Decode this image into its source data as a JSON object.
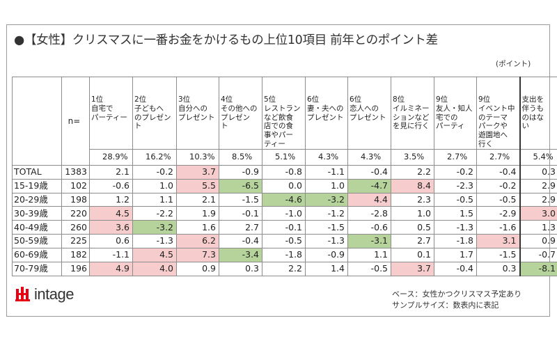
{
  "title": "●【女性】クリスマスに一番お金をかけるもの上位10項目 前年とのポイント差",
  "unit": "(ポイント)",
  "n_label": "n=",
  "notes": [
    "ベース：女性かつクリスマス予定あり",
    "サンプルサイズ：数表内に表記"
  ],
  "logo_text": "intage",
  "colors": {
    "positive": "#f6cccc",
    "negative": "#b5d39a",
    "border": "#8c8c8c"
  },
  "chart_data": {
    "type": "table",
    "title": "●【女性】クリスマスに一番お金をかけるもの上位10項目 前年とのポイント差",
    "columns": [
      {
        "header": [
          "1位",
          "自宅で",
          "パーティー"
        ],
        "share": "28.9%"
      },
      {
        "header": [
          "2位",
          "子どもへ",
          "のプレゼン",
          "ト"
        ],
        "share": "16.2%"
      },
      {
        "header": [
          "3位",
          "自分への",
          "プレゼント"
        ],
        "share": "10.3%"
      },
      {
        "header": [
          "4位",
          "その他への",
          "プレゼン",
          "ト"
        ],
        "share": "8.5%"
      },
      {
        "header": [
          "5位",
          "レストラン",
          "など飲食",
          "店での食",
          "事やパー",
          "ティー"
        ],
        "share": "5.1%"
      },
      {
        "header": [
          "6位",
          "妻・夫への",
          "プレゼント"
        ],
        "share": "4.3%"
      },
      {
        "header": [
          "6位",
          "恋人への",
          "プレゼント"
        ],
        "share": "4.3%"
      },
      {
        "header": [
          "8位",
          "イルミネー",
          "ションなど",
          "を見に行く"
        ],
        "share": "3.5%"
      },
      {
        "header": [
          "9位",
          "友人・知人",
          "宅での",
          "パーティ"
        ],
        "share": "2.7%"
      },
      {
        "header": [
          "9位",
          "イベント中",
          "のテーマ",
          "パークや",
          "遊園地へ",
          "行く"
        ],
        "share": "2.7%"
      },
      {
        "header": [
          "支出を",
          "伴うも",
          "のはな",
          "い"
        ],
        "share": "5.4%"
      }
    ],
    "rows": [
      {
        "label": "TOTAL",
        "n": "1383",
        "values": [
          "2.1",
          "-0.2",
          "3.7",
          "-0.9",
          "-0.8",
          "-1.1",
          "-0.4",
          "2.2",
          "-0.2",
          "-0.4",
          "0.3"
        ],
        "highlight": [
          "",
          "",
          "pos",
          "",
          "",
          "",
          "",
          "",
          "",
          "",
          ""
        ]
      },
      {
        "label": "15-19歳",
        "n": "102",
        "values": [
          "-0.6",
          "1.0",
          "5.5",
          "-6.5",
          "0.0",
          "1.0",
          "-4.7",
          "8.4",
          "-2.3",
          "-0.2",
          "2.9"
        ],
        "highlight": [
          "",
          "",
          "pos",
          "neg",
          "",
          "",
          "neg",
          "pos",
          "",
          "",
          ""
        ]
      },
      {
        "label": "20-29歳",
        "n": "198",
        "values": [
          "1.2",
          "1.1",
          "2.1",
          "-1.5",
          "-4.6",
          "-3.2",
          "4.4",
          "2.3",
          "-0.5",
          "-0.5",
          "2.9"
        ],
        "highlight": [
          "",
          "",
          "",
          "",
          "neg",
          "neg",
          "pos",
          "",
          "",
          "",
          ""
        ]
      },
      {
        "label": "30-39歳",
        "n": "220",
        "values": [
          "4.5",
          "-2.2",
          "1.9",
          "-0.1",
          "-1.0",
          "-1.2",
          "-2.8",
          "1.0",
          "1.5",
          "-2.9",
          "3.0"
        ],
        "highlight": [
          "pos",
          "",
          "",
          "",
          "",
          "",
          "",
          "",
          "",
          "",
          "pos"
        ]
      },
      {
        "label": "40-49歳",
        "n": "260",
        "values": [
          "3.6",
          "-3.2",
          "1.6",
          "2.7",
          "-0.1",
          "-1.5",
          "-0.6",
          "0.5",
          "-1.3",
          "-1.6",
          "1.3"
        ],
        "highlight": [
          "pos",
          "neg",
          "",
          "",
          "",
          "",
          "",
          "",
          "",
          "",
          ""
        ]
      },
      {
        "label": "50-59歳",
        "n": "225",
        "values": [
          "0.6",
          "-1.3",
          "6.2",
          "-0.4",
          "-0.5",
          "-1.3",
          "-3.1",
          "2.7",
          "-1.8",
          "3.1",
          "0.9"
        ],
        "highlight": [
          "",
          "",
          "pos",
          "",
          "",
          "",
          "neg",
          "",
          "",
          "pos",
          ""
        ]
      },
      {
        "label": "60-69歳",
        "n": "182",
        "values": [
          "-1.1",
          "4.5",
          "7.3",
          "-3.4",
          "-1.8",
          "-0.9",
          "1.1",
          "0.1",
          "1.7",
          "-1.5",
          "-0.7"
        ],
        "highlight": [
          "",
          "pos",
          "pos",
          "neg",
          "",
          "",
          "",
          "",
          "",
          "",
          ""
        ]
      },
      {
        "label": "70-79歳",
        "n": "196",
        "values": [
          "4.9",
          "4.0",
          "0.9",
          "0.3",
          "2.2",
          "1.4",
          "-0.5",
          "3.7",
          "-0.4",
          "0.3",
          "-8.1"
        ],
        "highlight": [
          "pos",
          "pos",
          "",
          "",
          "",
          "",
          "",
          "pos",
          "",
          "",
          "neg"
        ]
      }
    ]
  }
}
